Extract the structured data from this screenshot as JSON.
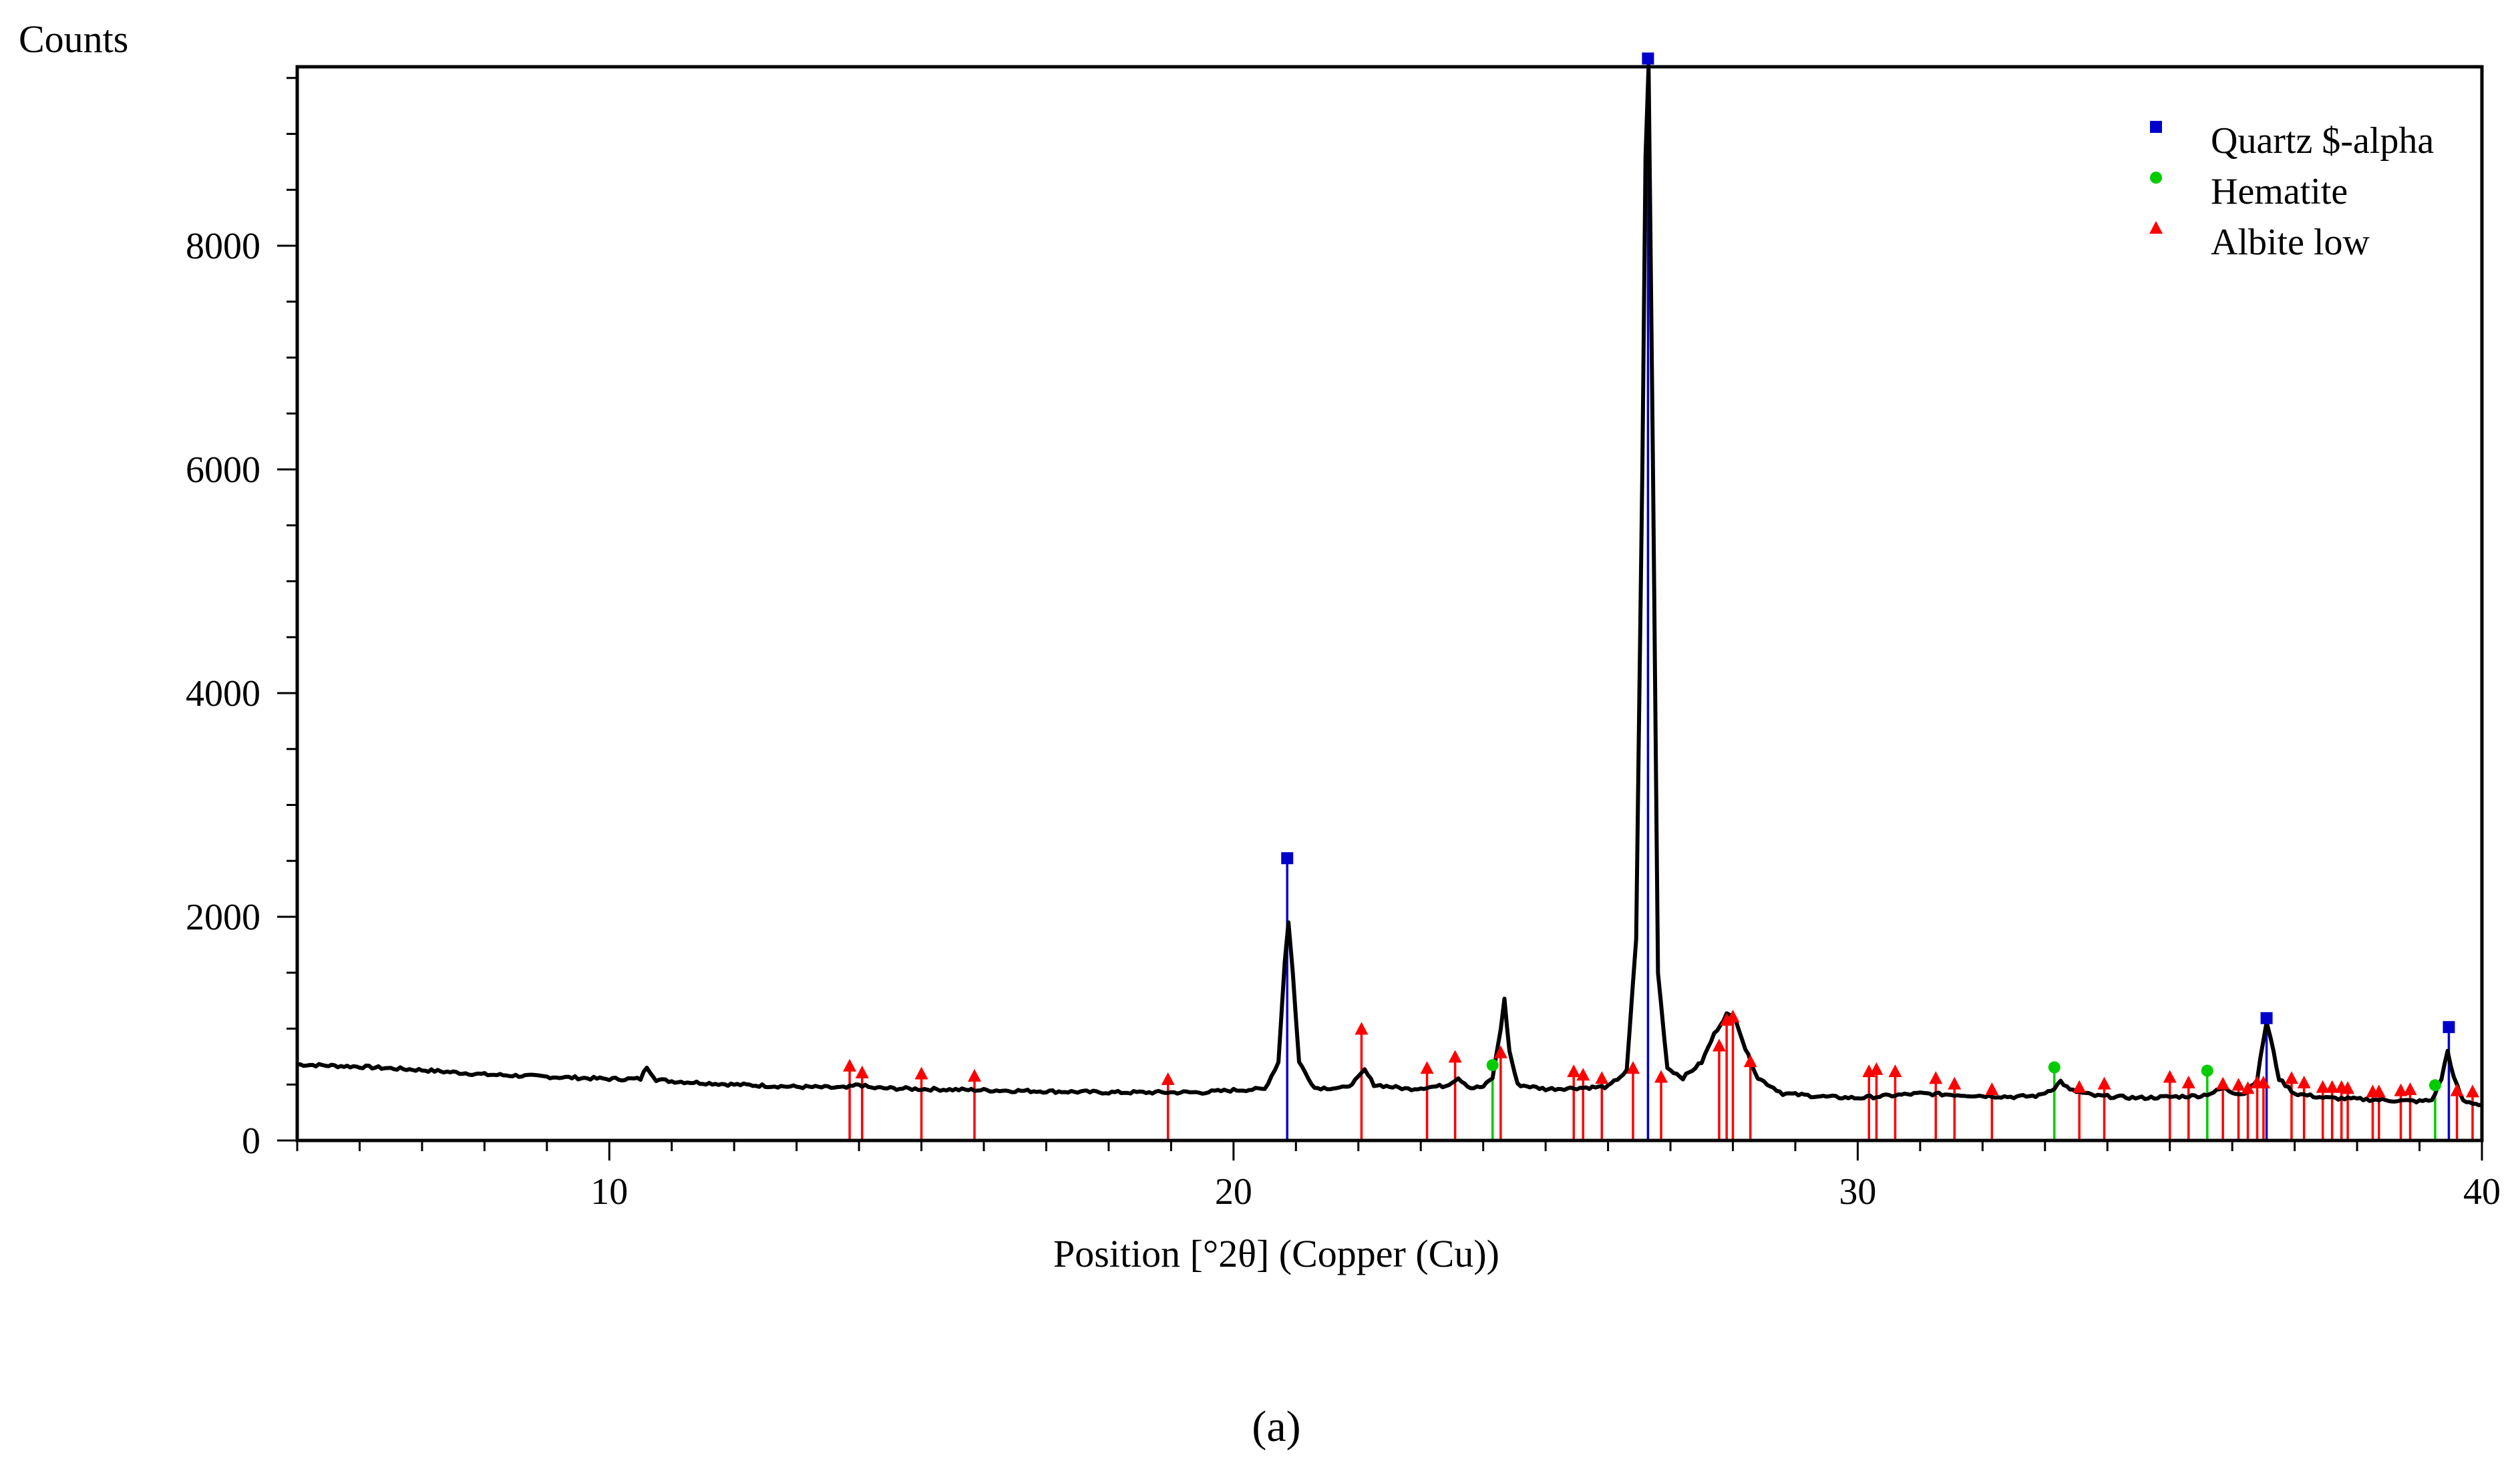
{
  "chart_data": {
    "type": "line",
    "xlabel": "Position [°2θ] (Copper (Cu))",
    "ylabel": "Counts",
    "xlim": [
      5,
      40
    ],
    "ylim": [
      0,
      9600
    ],
    "x_ticks": [
      10,
      20,
      30,
      40
    ],
    "y_ticks": [
      0,
      2000,
      4000,
      6000,
      8000
    ],
    "grid": false,
    "legend_position": "top-right",
    "caption": "(a)",
    "pattern": {
      "color": "#000000",
      "points": [
        [
          5,
          680
        ],
        [
          6,
          660
        ],
        [
          7,
          630
        ],
        [
          8,
          590
        ],
        [
          9,
          570
        ],
        [
          10,
          550
        ],
        [
          10.5,
          550
        ],
        [
          10.6,
          660
        ],
        [
          10.75,
          545
        ],
        [
          11,
          530
        ],
        [
          12,
          500
        ],
        [
          13,
          480
        ],
        [
          13.8,
          470
        ],
        [
          14,
          500
        ],
        [
          14.2,
          470
        ],
        [
          15,
          460
        ],
        [
          16,
          450
        ],
        [
          17,
          440
        ],
        [
          18,
          430
        ],
        [
          19,
          430
        ],
        [
          19.5,
          430
        ],
        [
          20,
          450
        ],
        [
          20.5,
          460
        ],
        [
          20.72,
          700
        ],
        [
          20.82,
          1600
        ],
        [
          20.88,
          1950
        ],
        [
          20.95,
          1500
        ],
        [
          21.05,
          700
        ],
        [
          21.3,
          470
        ],
        [
          21.8,
          470
        ],
        [
          22.0,
          560
        ],
        [
          22.1,
          630
        ],
        [
          22.25,
          500
        ],
        [
          22.8,
          460
        ],
        [
          23.4,
          490
        ],
        [
          23.6,
          560
        ],
        [
          23.8,
          470
        ],
        [
          24.0,
          480
        ],
        [
          24.15,
          560
        ],
        [
          24.28,
          1000
        ],
        [
          24.34,
          1260
        ],
        [
          24.42,
          800
        ],
        [
          24.55,
          500
        ],
        [
          25.0,
          460
        ],
        [
          25.5,
          470
        ],
        [
          26.0,
          480
        ],
        [
          26.3,
          620
        ],
        [
          26.45,
          1800
        ],
        [
          26.55,
          6000
        ],
        [
          26.6,
          8800
        ],
        [
          26.65,
          9600
        ],
        [
          26.72,
          6000
        ],
        [
          26.8,
          1500
        ],
        [
          26.95,
          650
        ],
        [
          27.2,
          560
        ],
        [
          27.5,
          700
        ],
        [
          27.7,
          950
        ],
        [
          27.9,
          1130
        ],
        [
          28.05,
          1080
        ],
        [
          28.2,
          820
        ],
        [
          28.4,
          560
        ],
        [
          28.8,
          420
        ],
        [
          29.5,
          390
        ],
        [
          30.0,
          380
        ],
        [
          30.5,
          400
        ],
        [
          31.0,
          420
        ],
        [
          31.5,
          410
        ],
        [
          32.0,
          400
        ],
        [
          32.5,
          390
        ],
        [
          32.9,
          400
        ],
        [
          33.15,
          470
        ],
        [
          33.25,
          530
        ],
        [
          33.4,
          450
        ],
        [
          33.8,
          400
        ],
        [
          34.5,
          380
        ],
        [
          35.0,
          390
        ],
        [
          35.5,
          400
        ],
        [
          35.7,
          430
        ],
        [
          35.85,
          470
        ],
        [
          36.0,
          430
        ],
        [
          36.2,
          420
        ],
        [
          36.4,
          550
        ],
        [
          36.5,
          900
        ],
        [
          36.55,
          1060
        ],
        [
          36.62,
          900
        ],
        [
          36.75,
          550
        ],
        [
          37.0,
          420
        ],
        [
          37.5,
          380
        ],
        [
          38.0,
          370
        ],
        [
          38.5,
          360
        ],
        [
          39.0,
          350
        ],
        [
          39.2,
          360
        ],
        [
          39.35,
          550
        ],
        [
          39.45,
          800
        ],
        [
          39.55,
          560
        ],
        [
          39.7,
          350
        ],
        [
          40,
          320
        ]
      ]
    },
    "series": [
      {
        "name": "Quartz $-alpha",
        "marker": "square",
        "color": "#0000cc",
        "peaks": [
          [
            20.86,
            2500
          ],
          [
            26.64,
            9650
          ],
          [
            36.55,
            1070
          ],
          [
            39.47,
            990
          ]
        ]
      },
      {
        "name": "Hematite",
        "marker": "circle",
        "color": "#00cc00",
        "peaks": [
          [
            24.15,
            650
          ],
          [
            33.15,
            630
          ],
          [
            35.6,
            600
          ],
          [
            39.25,
            470
          ]
        ]
      },
      {
        "name": "Albite low",
        "marker": "triangle",
        "color": "#ff0000",
        "peaks": [
          [
            13.85,
            640
          ],
          [
            14.05,
            580
          ],
          [
            15.0,
            570
          ],
          [
            15.85,
            550
          ],
          [
            18.95,
            520
          ],
          [
            22.05,
            970
          ],
          [
            23.1,
            620
          ],
          [
            23.55,
            720
          ],
          [
            24.28,
            760
          ],
          [
            25.45,
            590
          ],
          [
            25.6,
            560
          ],
          [
            25.9,
            530
          ],
          [
            26.4,
            620
          ],
          [
            26.85,
            540
          ],
          [
            27.78,
            820
          ],
          [
            27.9,
            1050
          ],
          [
            28.0,
            1080
          ],
          [
            28.28,
            680
          ],
          [
            30.18,
            590
          ],
          [
            30.3,
            610
          ],
          [
            30.6,
            590
          ],
          [
            31.25,
            530
          ],
          [
            31.55,
            480
          ],
          [
            32.15,
            430
          ],
          [
            33.55,
            450
          ],
          [
            33.95,
            480
          ],
          [
            35.0,
            540
          ],
          [
            35.3,
            490
          ],
          [
            35.85,
            480
          ],
          [
            36.1,
            470
          ],
          [
            36.25,
            440
          ],
          [
            36.4,
            490
          ],
          [
            36.5,
            490
          ],
          [
            36.95,
            530
          ],
          [
            37.15,
            490
          ],
          [
            37.45,
            450
          ],
          [
            37.6,
            450
          ],
          [
            37.75,
            450
          ],
          [
            37.85,
            440
          ],
          [
            38.25,
            410
          ],
          [
            38.35,
            410
          ],
          [
            38.7,
            420
          ],
          [
            38.85,
            430
          ],
          [
            39.6,
            420
          ],
          [
            39.85,
            410
          ]
        ]
      }
    ]
  }
}
